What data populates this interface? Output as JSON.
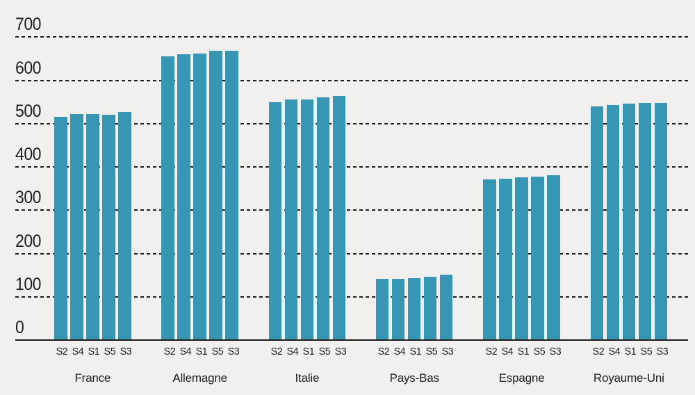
{
  "chart_data": {
    "type": "bar",
    "title": "",
    "xlabel": "",
    "ylabel": "",
    "legend": "none",
    "grid": "dashed-horizontal",
    "yticks": [
      0,
      100,
      200,
      300,
      400,
      500,
      600,
      700
    ],
    "ylim": [
      0,
      785
    ],
    "bar_labels": [
      "S2",
      "S4",
      "S1",
      "S5",
      "S3"
    ],
    "groups": [
      {
        "label": "France",
        "values": [
          515,
          521,
          521,
          519,
          525
        ]
      },
      {
        "label": "Allemagne",
        "values": [
          654,
          659,
          661,
          667,
          667
        ]
      },
      {
        "label": "Italie",
        "values": [
          548,
          554,
          555,
          560,
          562
        ]
      },
      {
        "label": "Pays-Bas",
        "values": [
          140,
          140,
          141,
          144,
          149
        ]
      },
      {
        "label": "Espagne",
        "values": [
          370,
          372,
          374,
          376,
          379
        ]
      },
      {
        "label": "Royaume-Uni",
        "values": [
          539,
          542,
          545,
          546,
          547
        ]
      }
    ],
    "colors": {
      "bar": "#3696b4",
      "background": "#f1f0ee",
      "gridline": "#1d1d1b",
      "text": "#1d1d1b"
    }
  }
}
